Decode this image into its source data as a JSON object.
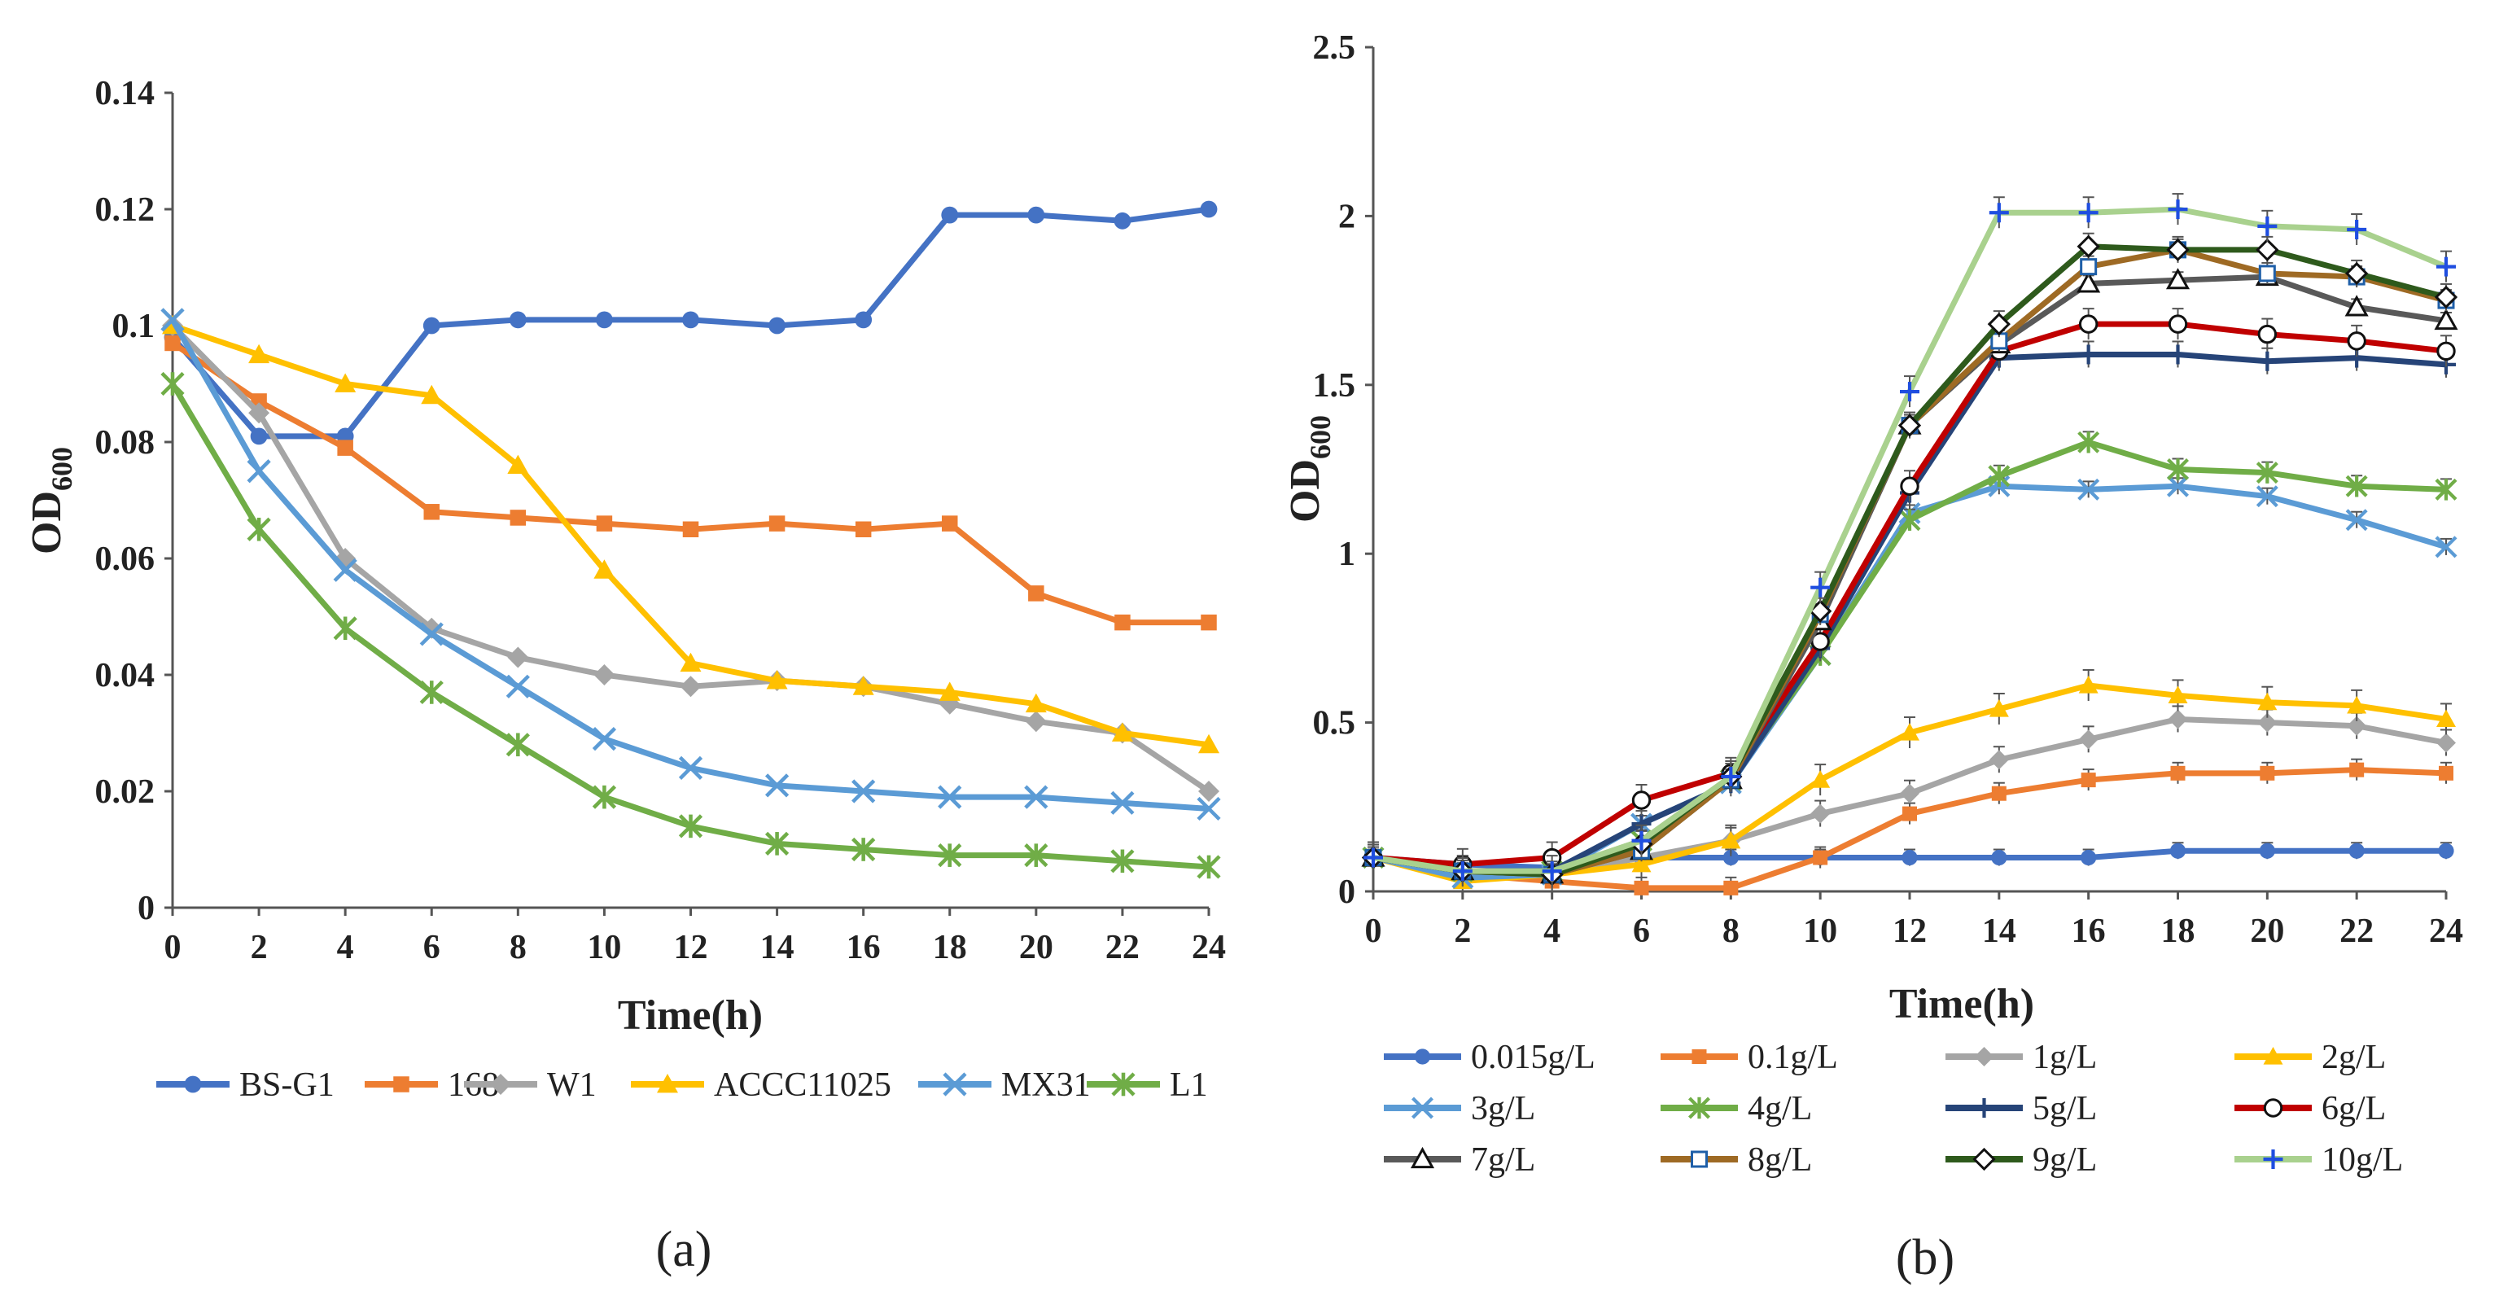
{
  "chart_data": [
    {
      "type": "line",
      "panel_label": "(a)",
      "xlabel": "Time(h)",
      "ylabel": "OD",
      "ylabel_sub": "600",
      "xlim": [
        0,
        24
      ],
      "ylim": [
        0,
        0.14
      ],
      "x_ticks": [
        "0",
        "2",
        "4",
        "6",
        "8",
        "10",
        "12",
        "14",
        "16",
        "18",
        "20",
        "22",
        "24"
      ],
      "y_ticks": [
        "0",
        "0.02",
        "0.04",
        "0.06",
        "0.08",
        "0.1",
        "0.12",
        "0.14"
      ],
      "legend_position": "bottom",
      "x": [
        0,
        2,
        4,
        6,
        8,
        10,
        12,
        14,
        16,
        18,
        20,
        22,
        24
      ],
      "series": [
        {
          "name": "BS-G1",
          "color": "#4472C4",
          "marker": "circle",
          "values": [
            0.098,
            0.081,
            0.081,
            0.1,
            0.101,
            0.101,
            0.101,
            0.1,
            0.101,
            0.119,
            0.119,
            0.118,
            0.12
          ]
        },
        {
          "name": "168",
          "color": "#ED7D31",
          "marker": "square",
          "values": [
            0.097,
            0.087,
            0.079,
            0.068,
            0.067,
            0.066,
            0.065,
            0.066,
            0.065,
            0.066,
            0.054,
            0.049,
            0.049
          ]
        },
        {
          "name": "W1",
          "color": "#A5A5A5",
          "marker": "diamond",
          "values": [
            0.1,
            0.085,
            0.06,
            0.048,
            0.043,
            0.04,
            0.038,
            0.039,
            0.038,
            0.035,
            0.032,
            0.03,
            0.02
          ]
        },
        {
          "name": "ACCC11025",
          "color": "#FFC000",
          "marker": "triangle",
          "values": [
            0.1,
            0.095,
            0.09,
            0.088,
            0.076,
            0.058,
            0.042,
            0.039,
            0.038,
            0.037,
            0.035,
            0.03,
            0.028
          ]
        },
        {
          "name": "MX31",
          "color": "#5B9BD5",
          "marker": "x",
          "values": [
            0.101,
            0.075,
            0.058,
            0.047,
            0.038,
            0.029,
            0.024,
            0.021,
            0.02,
            0.019,
            0.019,
            0.018,
            0.017
          ]
        },
        {
          "name": "L1",
          "color": "#70AD47",
          "marker": "star",
          "values": [
            0.09,
            0.065,
            0.048,
            0.037,
            0.028,
            0.019,
            0.014,
            0.011,
            0.01,
            0.009,
            0.009,
            0.008,
            0.007
          ]
        }
      ]
    },
    {
      "type": "line",
      "panel_label": "(b)",
      "xlabel": "Time(h)",
      "ylabel": "OD",
      "ylabel_sub": "600",
      "xlim": [
        0,
        24
      ],
      "ylim": [
        0,
        2.5
      ],
      "x_ticks": [
        "0",
        "2",
        "4",
        "6",
        "8",
        "10",
        "12",
        "14",
        "16",
        "18",
        "20",
        "22",
        "24"
      ],
      "y_ticks": [
        "0",
        "0.5",
        "1",
        "1.5",
        "2",
        "2.5"
      ],
      "legend_position": "bottom",
      "error_bars": true,
      "x": [
        0,
        2,
        4,
        6,
        8,
        10,
        12,
        14,
        16,
        18,
        20,
        22,
        24
      ],
      "series": [
        {
          "name": "0.015g/L",
          "color": "#4472C4",
          "marker": "circle",
          "values": [
            0.1,
            0.08,
            0.07,
            0.1,
            0.1,
            0.1,
            0.1,
            0.1,
            0.1,
            0.12,
            0.12,
            0.12,
            0.12
          ]
        },
        {
          "name": "0.1g/L",
          "color": "#ED7D31",
          "marker": "square",
          "values": [
            0.1,
            0.05,
            0.03,
            0.01,
            0.01,
            0.1,
            0.23,
            0.29,
            0.33,
            0.35,
            0.35,
            0.36,
            0.35
          ]
        },
        {
          "name": "1g/L",
          "color": "#A5A5A5",
          "marker": "diamond",
          "values": [
            0.1,
            0.05,
            0.05,
            0.1,
            0.15,
            0.23,
            0.29,
            0.39,
            0.45,
            0.51,
            0.5,
            0.49,
            0.44
          ]
        },
        {
          "name": "2g/L",
          "color": "#FFC000",
          "marker": "triangle",
          "values": [
            0.1,
            0.03,
            0.05,
            0.08,
            0.15,
            0.33,
            0.47,
            0.54,
            0.61,
            0.58,
            0.56,
            0.55,
            0.51
          ]
        },
        {
          "name": "3g/L",
          "color": "#5B9BD5",
          "marker": "x",
          "values": [
            0.1,
            0.04,
            0.05,
            0.2,
            0.32,
            0.7,
            1.12,
            1.2,
            1.19,
            1.2,
            1.17,
            1.1,
            1.02
          ]
        },
        {
          "name": "4g/L",
          "color": "#70AD47",
          "marker": "star",
          "values": [
            0.1,
            0.06,
            0.06,
            0.15,
            0.33,
            0.7,
            1.1,
            1.23,
            1.33,
            1.25,
            1.24,
            1.2,
            1.19
          ]
        },
        {
          "name": "5g/L",
          "color": "#264478",
          "marker": "plus",
          "values": [
            0.1,
            0.06,
            0.06,
            0.2,
            0.32,
            0.72,
            1.18,
            1.58,
            1.59,
            1.59,
            1.57,
            1.58,
            1.56
          ]
        },
        {
          "name": "6g/L",
          "color": "#C00000",
          "marker": "ocircle",
          "values": [
            0.1,
            0.08,
            0.1,
            0.27,
            0.35,
            0.74,
            1.2,
            1.6,
            1.68,
            1.68,
            1.65,
            1.63,
            1.6
          ]
        },
        {
          "name": "7g/L",
          "color": "#595959",
          "marker": "otriangle",
          "values": [
            0.1,
            0.06,
            0.05,
            0.12,
            0.33,
            0.8,
            1.38,
            1.62,
            1.8,
            1.81,
            1.82,
            1.73,
            1.69
          ]
        },
        {
          "name": "8g/L",
          "color": "#9E6A24",
          "marker": "osquare",
          "values": [
            0.1,
            0.06,
            0.05,
            0.12,
            0.33,
            0.82,
            1.38,
            1.63,
            1.85,
            1.9,
            1.83,
            1.82,
            1.75
          ]
        },
        {
          "name": "9g/L",
          "color": "#2E5A1C",
          "marker": "odiamond",
          "values": [
            0.1,
            0.06,
            0.05,
            0.14,
            0.34,
            0.83,
            1.38,
            1.68,
            1.91,
            1.9,
            1.9,
            1.83,
            1.76
          ]
        },
        {
          "name": "10g/L",
          "color": "#A9D18E",
          "marker": "bplus",
          "values": [
            0.1,
            0.06,
            0.06,
            0.15,
            0.34,
            0.9,
            1.48,
            2.01,
            2.01,
            2.02,
            1.97,
            1.96,
            1.85
          ]
        }
      ]
    }
  ]
}
